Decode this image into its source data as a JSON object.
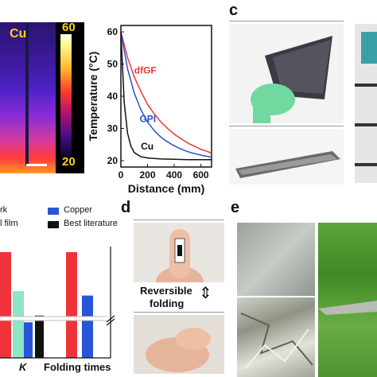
{
  "labels": {
    "panel_c": "c",
    "panel_d": "d",
    "panel_e": "e",
    "thermal_material": "Cu",
    "colorbar_max": "60",
    "colorbar_min": "20",
    "reversible_text": "Reversible",
    "folding_text": "folding",
    "legend_partial_1": "rk",
    "legend_partial_2": "l film",
    "legend_copper": "Copper",
    "legend_best": "Best literature",
    "bar_xlabel_k": "K",
    "bar_xlabel_folding": "Folding times"
  },
  "colors": {
    "dfGF": "#e8383a",
    "GPI": "#2a52c9",
    "Cu": "#111111",
    "bar_red": "#f0333b",
    "bar_teal": "#8ee6c4",
    "bar_blue": "#2855d6",
    "bar_black": "#111111"
  },
  "chart_data": [
    {
      "type": "line",
      "xlabel": "Distance (mm)",
      "ylabel": "Temperature (°C)",
      "xlim": [
        0,
        680
      ],
      "ylim": [
        18,
        62
      ],
      "xticks": [
        0,
        200,
        400,
        600
      ],
      "yticks": [
        20,
        30,
        40,
        50,
        60
      ],
      "series": [
        {
          "name": "dfGF",
          "x": [
            0,
            50,
            100,
            150,
            200,
            250,
            300,
            350,
            400,
            450,
            500,
            550,
            600,
            650,
            680
          ],
          "y": [
            60,
            52,
            46,
            41.5,
            37.5,
            34.5,
            32,
            30,
            28.2,
            26.8,
            25.5,
            24.5,
            23.5,
            22.8,
            22.3
          ]
        },
        {
          "name": "GPI",
          "x": [
            0,
            50,
            100,
            150,
            200,
            250,
            300,
            350,
            400,
            450,
            500,
            550,
            600,
            650,
            680
          ],
          "y": [
            60,
            48.5,
            41,
            35.8,
            32,
            29.3,
            27.3,
            25.8,
            24.6,
            23.6,
            22.8,
            22.2,
            21.7,
            21.3,
            21.1
          ]
        },
        {
          "name": "Cu",
          "x": [
            0,
            25,
            50,
            75,
            100,
            150,
            200,
            300,
            400,
            500,
            600,
            680
          ],
          "y": [
            60,
            38,
            28.5,
            24.5,
            22.5,
            21.2,
            20.8,
            20.5,
            20.4,
            20.3,
            20.3,
            20.3
          ]
        }
      ]
    },
    {
      "type": "bar",
      "categories": [
        "K",
        "Folding times"
      ],
      "values_visible_fraction": {
        "K": {
          "red": 0.95,
          "teal": 0.6,
          "blue": 0.32,
          "black": 0.38
        },
        "Folding times": {
          "red": 0.95,
          "blue": 0.56
        }
      }
    }
  ]
}
